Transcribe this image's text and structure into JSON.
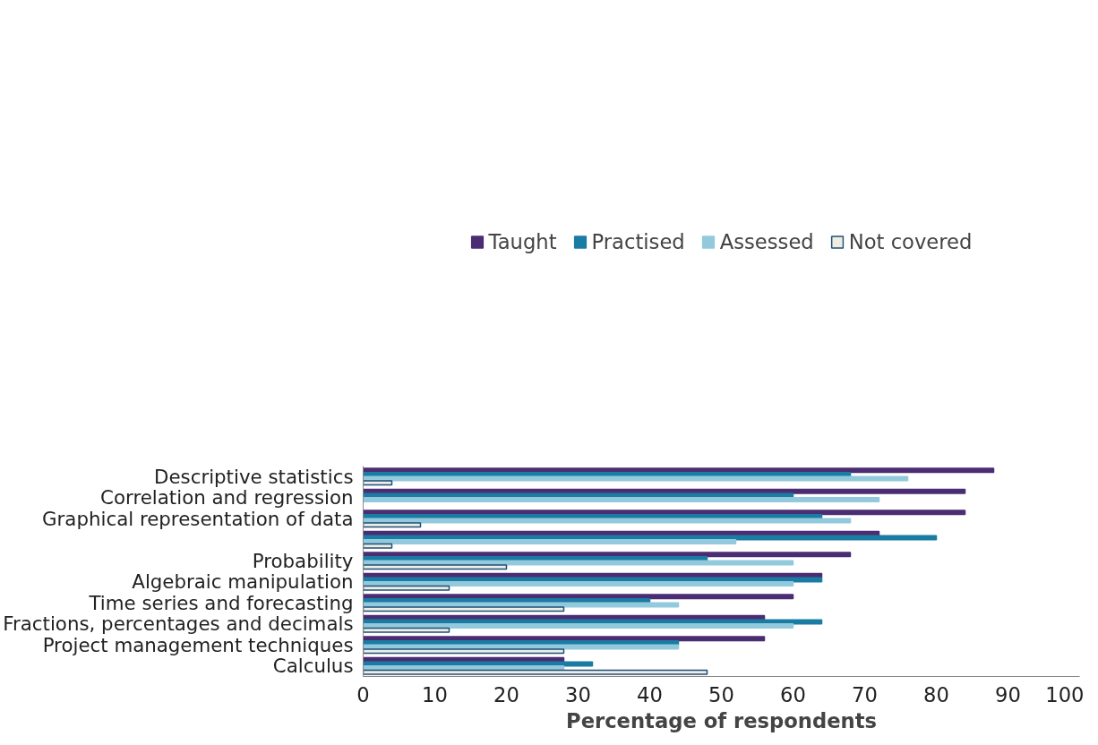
{
  "chart_data": {
    "type": "bar",
    "orientation": "horizontal",
    "xlabel": "Percentage of respondents",
    "categories": [
      "Descriptive statistics",
      "Correlation and regression",
      "Graphical representation of data",
      null,
      "Probability",
      "Algebraic manipulation",
      "Time series and forecasting",
      "Fractions, percentages and decimals",
      "Project management techniques",
      "Calculus"
    ],
    "series": [
      {
        "name": "Taught",
        "color": "#4b2d73",
        "values": [
          88,
          84,
          84,
          72,
          68,
          64,
          60,
          56,
          56,
          28
        ]
      },
      {
        "name": "Practised",
        "color": "#1a7ca3",
        "values": [
          68,
          60,
          64,
          80,
          48,
          64,
          40,
          64,
          44,
          32
        ]
      },
      {
        "name": "Assessed",
        "color": "#93c9dc",
        "values": [
          76,
          72,
          68,
          52,
          60,
          60,
          44,
          60,
          44,
          28
        ]
      },
      {
        "name": "Not covered",
        "color": "#eeede3",
        "values": [
          4,
          null,
          8,
          4,
          20,
          12,
          28,
          12,
          28,
          48
        ]
      }
    ],
    "xlim": [
      0,
      100
    ],
    "xticks": [
      0,
      10,
      20,
      30,
      40,
      50,
      60,
      70,
      80,
      90,
      100
    ],
    "grid": false,
    "legend": "top"
  }
}
